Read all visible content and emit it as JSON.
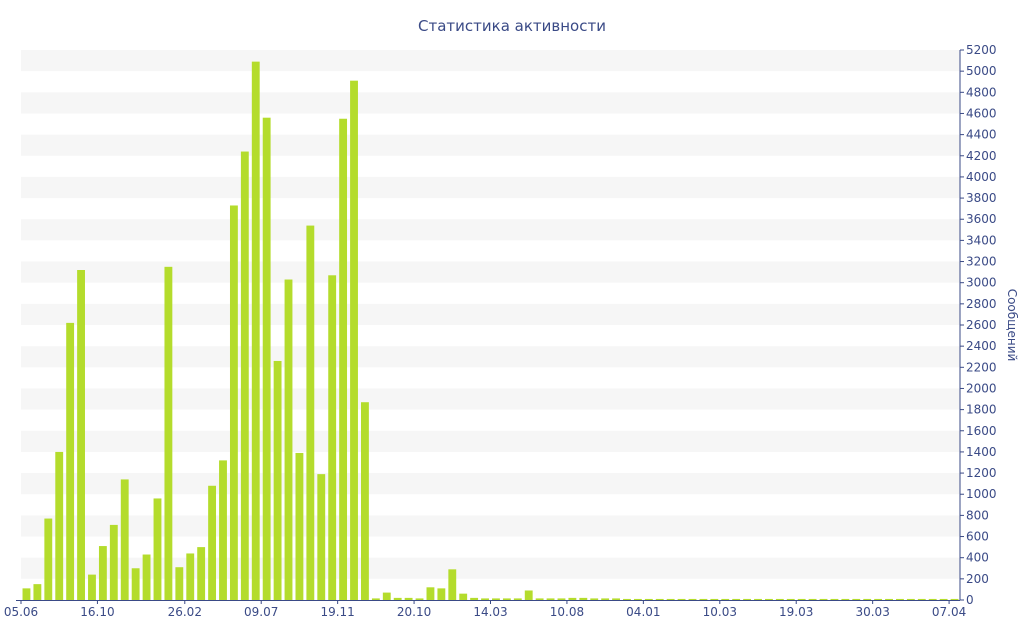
{
  "chart_data": {
    "type": "bar",
    "title": "Статистика активности",
    "xlabel": "",
    "ylabel": "Сообщений",
    "ylim": [
      0,
      5200
    ],
    "y_ticks": [
      0,
      200,
      400,
      600,
      800,
      1000,
      1200,
      1400,
      1600,
      1800,
      2000,
      2200,
      2400,
      2600,
      2800,
      3000,
      3200,
      3400,
      3600,
      3800,
      4000,
      4200,
      4400,
      4600,
      4800,
      5000,
      5200
    ],
    "x_ticks": [
      {
        "label": "05.06",
        "index": -0.5
      },
      {
        "label": "16.10",
        "index": 6.5
      },
      {
        "label": "26.02",
        "index": 14.5
      },
      {
        "label": "09.07",
        "index": 21.5
      },
      {
        "label": "19.11",
        "index": 28.5
      },
      {
        "label": "20.10",
        "index": 35.5
      },
      {
        "label": "14.03",
        "index": 42.5
      },
      {
        "label": "10.08",
        "index": 49.5
      },
      {
        "label": "04.01",
        "index": 56.5
      },
      {
        "label": "10.03",
        "index": 63.5
      },
      {
        "label": "19.03",
        "index": 70.5
      },
      {
        "label": "30.03",
        "index": 77.5
      },
      {
        "label": "07.04",
        "index": 84.5
      }
    ],
    "grid": true,
    "bar_color": "#b4dc2c",
    "band_color": "#f6f6f6",
    "axis_color": "#3a4a86",
    "values": [
      110,
      150,
      770,
      1400,
      2620,
      3120,
      240,
      510,
      710,
      1140,
      300,
      430,
      960,
      3150,
      310,
      440,
      500,
      1080,
      1320,
      3730,
      4240,
      5090,
      4560,
      2260,
      3030,
      1390,
      3540,
      1190,
      3070,
      4550,
      4910,
      1870,
      15,
      70,
      20,
      20,
      15,
      120,
      110,
      290,
      60,
      20,
      15,
      15,
      15,
      15,
      90,
      15,
      15,
      15,
      20,
      20,
      15,
      15,
      15,
      10,
      10,
      10,
      10,
      10,
      10,
      10,
      10,
      10,
      10,
      10,
      10,
      10,
      10,
      10,
      10,
      10,
      10,
      10,
      10,
      10,
      10,
      10,
      10,
      10,
      10,
      10,
      10,
      10,
      10,
      10
    ]
  }
}
